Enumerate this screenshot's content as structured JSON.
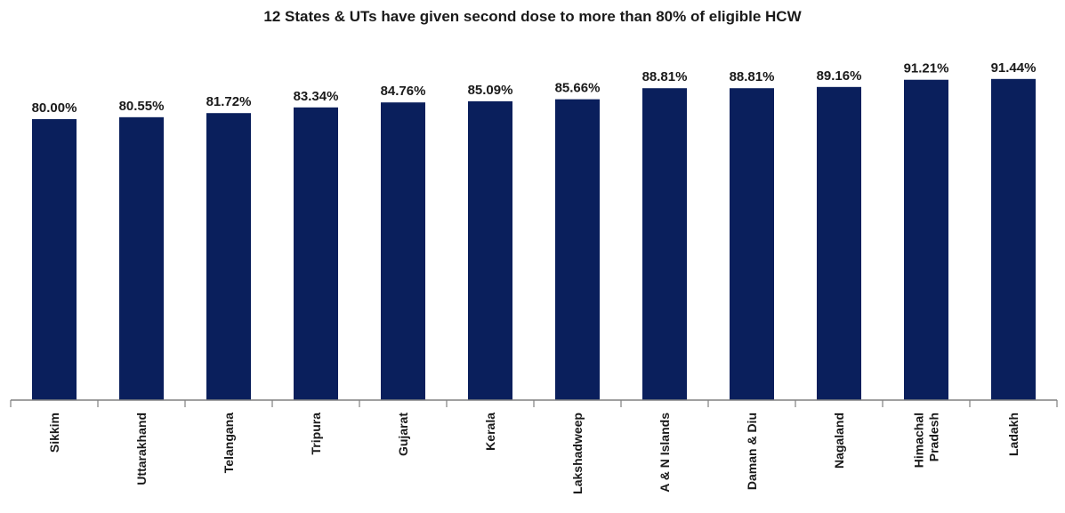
{
  "chart_data": {
    "type": "bar",
    "title": "12 States & UTs have given second dose to more than 80% of eligible HCW",
    "xlabel": "",
    "ylabel": "",
    "ylim": [
      0,
      100
    ],
    "grid": false,
    "legend": "none",
    "bar_color": "#0a1f5c",
    "categories": [
      "Sikkim",
      "Uttarakhand",
      "Telangana",
      "Tripura",
      "Gujarat",
      "Kerala",
      "Lakshadweep",
      "A & N Islands",
      "Daman & Diu",
      "Nagaland",
      [
        "Himachal",
        "Pradesh"
      ],
      "Ladakh"
    ],
    "values": [
      80.0,
      80.55,
      81.72,
      83.34,
      84.76,
      85.09,
      85.66,
      88.81,
      88.81,
      89.16,
      91.21,
      91.44
    ],
    "data_labels": [
      "80.00%",
      "80.55%",
      "81.72%",
      "83.34%",
      "84.76%",
      "85.09%",
      "85.66%",
      "88.81%",
      "88.81%",
      "89.16%",
      "91.21%",
      "91.44%"
    ]
  }
}
